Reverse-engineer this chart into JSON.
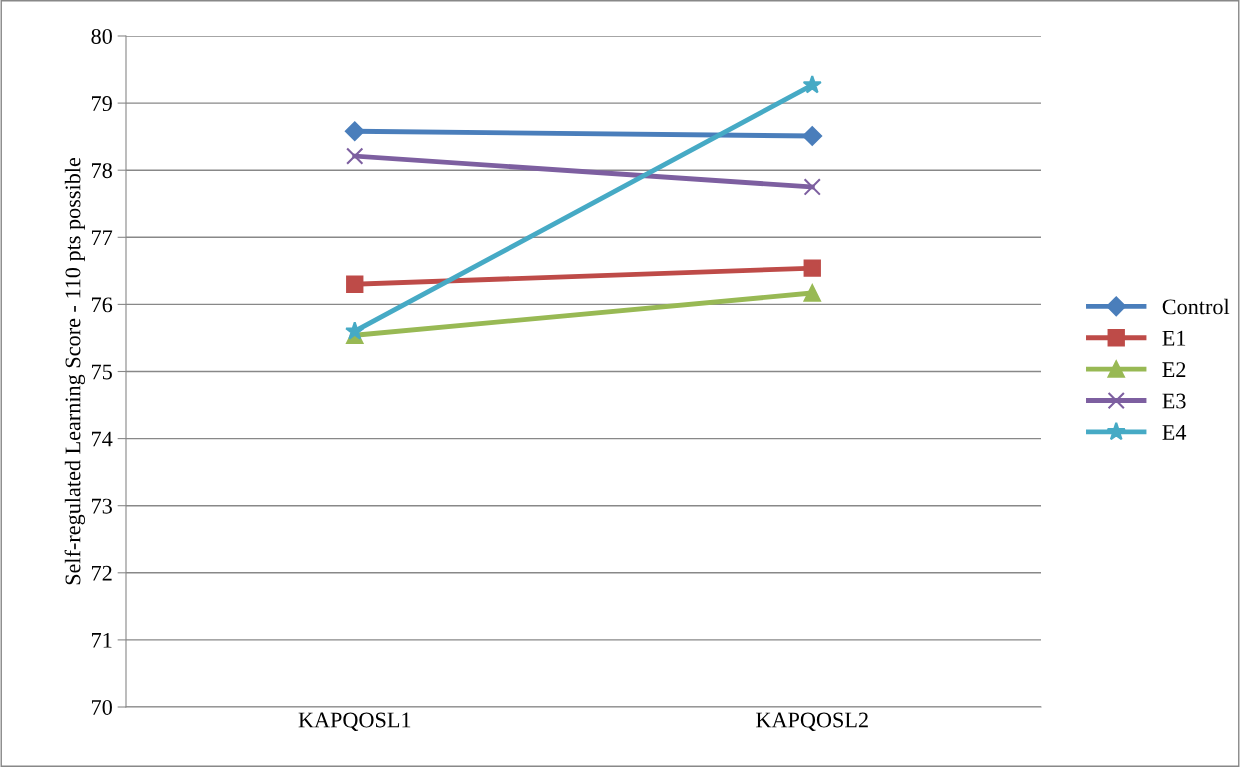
{
  "chart_data": {
    "type": "line",
    "ylabel": "Self-regulated Learning Score - 110 pts possible",
    "categories": [
      "KAPQOSL1",
      "KAPQOSL2"
    ],
    "series": [
      {
        "name": "Control",
        "color": "#4a7ebb",
        "values": [
          78.58,
          78.51
        ],
        "marker": "diamond"
      },
      {
        "name": "E1",
        "color": "#be4b48",
        "values": [
          76.3,
          76.54
        ],
        "marker": "square"
      },
      {
        "name": "E2",
        "color": "#98b954",
        "values": [
          75.54,
          76.17
        ],
        "marker": "triangle"
      },
      {
        "name": "E3",
        "color": "#7d5fa0",
        "values": [
          78.21,
          77.75
        ],
        "marker": "cross"
      },
      {
        "name": "E4",
        "color": "#46aac5",
        "values": [
          75.6,
          79.27
        ],
        "marker": "star"
      }
    ],
    "ylim": [
      70,
      80
    ],
    "yticks": [
      70,
      71,
      72,
      73,
      74,
      75,
      76,
      77,
      78,
      79,
      80
    ],
    "grid": "y",
    "legend": "right",
    "line_style": "solid"
  }
}
